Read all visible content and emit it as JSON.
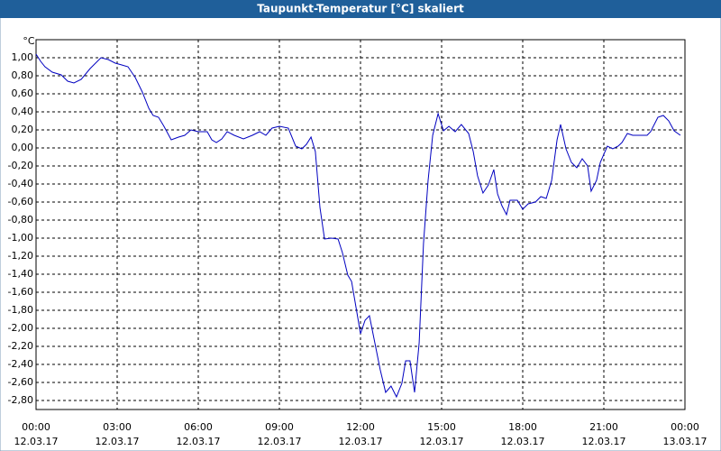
{
  "chart_data": {
    "type": "line",
    "title": "Taupunkt-Temperatur [°C] skaliert",
    "y_label": "°C",
    "x": [
      0,
      0.17,
      0.33,
      0.6,
      0.93,
      1.17,
      1.4,
      1.67,
      2,
      2.4,
      2.67,
      2.93,
      3.17,
      3.4,
      3.67,
      3.93,
      4.17,
      4.33,
      4.53,
      4.73,
      5,
      5.27,
      5.5,
      5.73,
      6,
      6.33,
      6.5,
      6.67,
      6.87,
      7.07,
      7.33,
      7.67,
      8,
      8.27,
      8.5,
      8.73,
      9,
      9.33,
      9.6,
      9.83,
      10,
      10.17,
      10.33,
      10.5,
      10.67,
      10.93,
      11.17,
      11.33,
      11.53,
      11.67,
      11.83,
      12,
      12.17,
      12.33,
      12.53,
      12.73,
      12.93,
      13.13,
      13.33,
      13.53,
      13.67,
      13.83,
      14,
      14.17,
      14.33,
      14.5,
      14.67,
      14.87,
      15.07,
      15.27,
      15.5,
      15.73,
      16,
      16.17,
      16.33,
      16.53,
      16.73,
      16.93,
      17.07,
      17.23,
      17.4,
      17.53,
      17.8,
      18,
      18.2,
      18.47,
      18.67,
      18.87,
      19.07,
      19.27,
      19.4,
      19.6,
      19.8,
      20,
      20.2,
      20.4,
      20.53,
      20.73,
      20.87,
      21.13,
      21.33,
      21.53,
      21.67,
      21.87,
      22.07,
      22.33,
      22.6,
      22.73,
      23,
      23.2,
      23.4,
      23.6,
      23.83
    ],
    "series": [
      {
        "name": "Taupunkt-Temperatur",
        "color": "#0000c0",
        "values": [
          1.04,
          0.96,
          0.9,
          0.84,
          0.81,
          0.74,
          0.72,
          0.76,
          0.88,
          1.0,
          0.98,
          0.94,
          0.92,
          0.9,
          0.78,
          0.62,
          0.44,
          0.36,
          0.34,
          0.24,
          0.09,
          0.12,
          0.14,
          0.2,
          0.18,
          0.18,
          0.09,
          0.06,
          0.1,
          0.18,
          0.14,
          0.1,
          0.14,
          0.18,
          0.14,
          0.22,
          0.24,
          0.22,
          0.02,
          -0.01,
          0.04,
          0.12,
          -0.04,
          -0.66,
          -1.01,
          -1.0,
          -1.01,
          -1.16,
          -1.41,
          -1.48,
          -1.76,
          -2.06,
          -1.91,
          -1.86,
          -2.16,
          -2.46,
          -2.71,
          -2.64,
          -2.76,
          -2.61,
          -2.36,
          -2.36,
          -2.71,
          -2.16,
          -1.06,
          -0.36,
          0.14,
          0.38,
          0.19,
          0.24,
          0.18,
          0.26,
          0.16,
          -0.04,
          -0.31,
          -0.5,
          -0.41,
          -0.24,
          -0.51,
          -0.64,
          -0.74,
          -0.58,
          -0.58,
          -0.68,
          -0.62,
          -0.6,
          -0.54,
          -0.56,
          -0.36,
          0.09,
          0.26,
          -0.01,
          -0.16,
          -0.22,
          -0.12,
          -0.2,
          -0.48,
          -0.36,
          -0.16,
          0.02,
          -0.01,
          0.02,
          0.06,
          0.16,
          0.14,
          0.14,
          0.14,
          0.18,
          0.34,
          0.36,
          0.3,
          0.19,
          0.14
        ]
      }
    ],
    "xlim": [
      0,
      24
    ],
    "xticks": [
      {
        "value": 0,
        "label": "00:00"
      },
      {
        "value": 3,
        "label": "03:00"
      },
      {
        "value": 6,
        "label": "06:00"
      },
      {
        "value": 9,
        "label": "09:00"
      },
      {
        "value": 12,
        "label": "12:00"
      },
      {
        "value": 15,
        "label": "15:00"
      },
      {
        "value": 18,
        "label": "18:00"
      },
      {
        "value": 21,
        "label": "21:00"
      },
      {
        "value": 24,
        "label": "00:00"
      }
    ],
    "xtick_dates": [
      "12.03.17",
      "12.03.17",
      "12.03.17",
      "12.03.17",
      "12.03.17",
      "12.03.17",
      "12.03.17",
      "12.03.17",
      "13.03.17"
    ],
    "ylim": [
      -2.9,
      1.2
    ],
    "yticks": [
      {
        "value": 1,
        "label": "1,00"
      },
      {
        "value": 0.8,
        "label": "0,80"
      },
      {
        "value": 0.6,
        "label": "0,60"
      },
      {
        "value": 0.4,
        "label": "0,40"
      },
      {
        "value": 0.2,
        "label": "0,20"
      },
      {
        "value": 0,
        "label": "0,00"
      },
      {
        "value": -0.2,
        "label": "-0,20"
      },
      {
        "value": -0.4,
        "label": "-0,40"
      },
      {
        "value": -0.6,
        "label": "-0,60"
      },
      {
        "value": -0.8,
        "label": "-0,80"
      },
      {
        "value": -1,
        "label": "-1,00"
      },
      {
        "value": -1.2,
        "label": "-1,20"
      },
      {
        "value": -1.4,
        "label": "-1,40"
      },
      {
        "value": -1.6,
        "label": "-1,60"
      },
      {
        "value": -1.8,
        "label": "-1,80"
      },
      {
        "value": -2,
        "label": "-2,00"
      },
      {
        "value": -2.2,
        "label": "-2,20"
      },
      {
        "value": -2.4,
        "label": "-2,40"
      },
      {
        "value": -2.6,
        "label": "-2,60"
      },
      {
        "value": -2.8,
        "label": "-2,80"
      }
    ],
    "grid": true
  }
}
